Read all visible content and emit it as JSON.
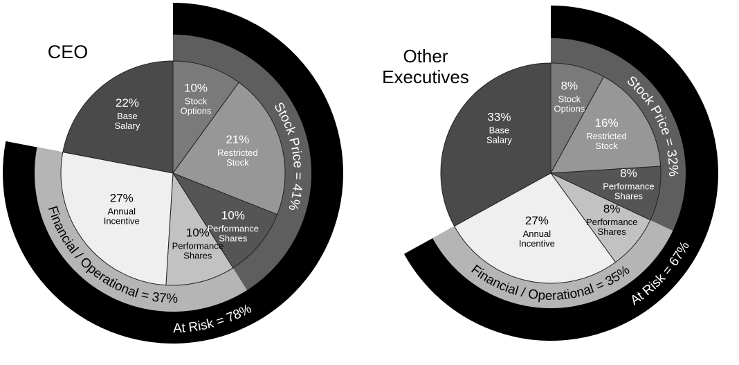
{
  "chart_data": [
    {
      "type": "pie",
      "title": "CEO",
      "slices": [
        {
          "label": "Base Salary",
          "value": 22,
          "value_label": "22%",
          "color": "#4a4a4a",
          "text_color": "#ffffff"
        },
        {
          "label": "Stock Options",
          "value": 10,
          "value_label": "10%",
          "color": "#7a7a7a",
          "text_color": "#ffffff"
        },
        {
          "label": "Restricted Stock",
          "value": 21,
          "value_label": "21%",
          "color": "#979797",
          "text_color": "#ffffff"
        },
        {
          "label": "Performance Shares",
          "value": 10,
          "value_label": "10%",
          "color": "#555555",
          "text_color": "#ffffff"
        },
        {
          "label": "Performance Shares",
          "value": 10,
          "value_label": "10%",
          "color": "#c2c2c2",
          "text_color": "#000000"
        },
        {
          "label": "Annual Incentive",
          "value": 27,
          "value_label": "27%",
          "color": "#efefef",
          "text_color": "#000000"
        }
      ],
      "rings": [
        {
          "label": "Stock Price = 41%",
          "color": "#5e5e5e",
          "text_color": "#ffffff"
        },
        {
          "label": "Financial / Operational = 37%",
          "color": "#b5b5b5",
          "text_color": "#000000"
        },
        {
          "label": "At Risk = 78%",
          "color": "#000000",
          "text_color": "#ffffff"
        }
      ]
    },
    {
      "type": "pie",
      "title": "Other Executives",
      "title_lines": [
        "Other",
        "Executives"
      ],
      "slices": [
        {
          "label": "Base Salary",
          "value": 33,
          "value_label": "33%",
          "color": "#4a4a4a",
          "text_color": "#ffffff"
        },
        {
          "label": "Stock Options",
          "value": 8,
          "value_label": "8%",
          "color": "#7a7a7a",
          "text_color": "#ffffff"
        },
        {
          "label": "Restricted Stock",
          "value": 16,
          "value_label": "16%",
          "color": "#979797",
          "text_color": "#ffffff"
        },
        {
          "label": "Performance Shares",
          "value": 8,
          "value_label": "8%",
          "color": "#555555",
          "text_color": "#ffffff"
        },
        {
          "label": "Performance Shares",
          "value": 8,
          "value_label": "8%",
          "color": "#c2c2c2",
          "text_color": "#000000"
        },
        {
          "label": "Annual Incentive",
          "value": 27,
          "value_label": "27%",
          "color": "#efefef",
          "text_color": "#000000"
        }
      ],
      "rings": [
        {
          "label": "Stock Price = 32%",
          "color": "#5e5e5e",
          "text_color": "#ffffff"
        },
        {
          "label": "Financial / Operational = 35%",
          "color": "#b5b5b5",
          "text_color": "#000000"
        },
        {
          "label": "At Risk = 67%",
          "color": "#000000",
          "text_color": "#ffffff"
        }
      ]
    }
  ]
}
